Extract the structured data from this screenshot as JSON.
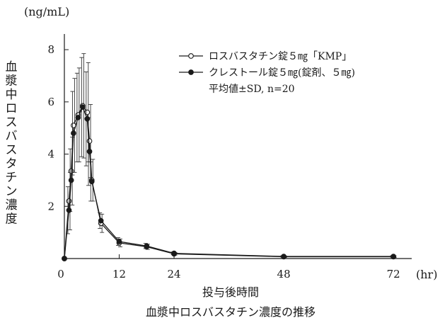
{
  "chart_data": {
    "type": "line",
    "title": "血漿中ロスバスタチン濃度の推移",
    "xlabel": "投与後時間",
    "xunit": "(hr)",
    "ylabel": "血漿中ロスバスタチン濃度",
    "yunit": "(ng/mL)",
    "xlim": [
      0,
      76
    ],
    "ylim": [
      0,
      8.6
    ],
    "xticks": [
      0,
      12,
      24,
      48,
      72
    ],
    "yticks": [
      2,
      4,
      6,
      8
    ],
    "grid": false,
    "legend_position": "top-right",
    "legend_note": "平均値±SD, n=20",
    "series": [
      {
        "name": "ロスバスタチン錠５㎎「KMP」",
        "marker": "open-circle",
        "x": [
          0,
          1,
          1.5,
          2,
          3,
          4,
          5,
          5.5,
          6,
          8,
          12,
          18,
          24,
          48,
          72
        ],
        "y": [
          0,
          2.2,
          3.35,
          5.1,
          5.5,
          5.85,
          5.6,
          4.5,
          3.0,
          1.35,
          0.6,
          0.45,
          0.18,
          0.07,
          0.07
        ],
        "sd": [
          0,
          1.1,
          1.3,
          1.8,
          1.8,
          2.0,
          1.9,
          1.4,
          0.8,
          0.35,
          0.15,
          0.1,
          0.05,
          0.03,
          0.03
        ]
      },
      {
        "name": "クレストール錠５㎎(錠剤、５㎎)",
        "marker": "filled-circle",
        "x": [
          0,
          1,
          1.5,
          2,
          3,
          4,
          5,
          5.5,
          6,
          8,
          12,
          18,
          24,
          48,
          72
        ],
        "y": [
          0,
          1.85,
          3.0,
          4.8,
          5.4,
          5.8,
          5.35,
          4.1,
          2.95,
          1.45,
          0.65,
          0.48,
          0.2,
          0.08,
          0.08
        ],
        "sd": [
          0,
          0.9,
          1.2,
          1.6,
          1.7,
          1.9,
          1.8,
          1.3,
          0.75,
          0.3,
          0.15,
          0.1,
          0.05,
          0.03,
          0.03
        ]
      }
    ]
  }
}
